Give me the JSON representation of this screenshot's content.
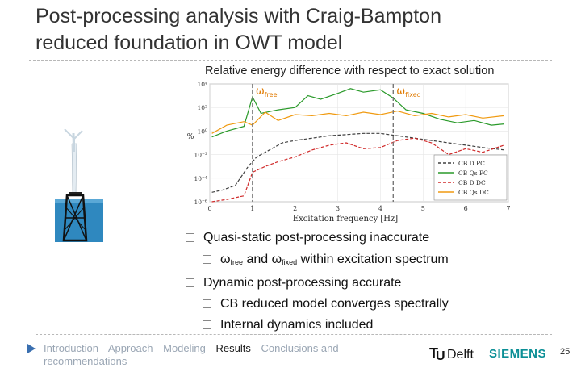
{
  "slide": {
    "title_line1": "Post-processing analysis with Craig-Bampton",
    "title_line2": "reduced foundation in OWT model",
    "chart_caption": "Relative energy difference with respect to exact solution",
    "page_number": "25"
  },
  "chart_data": {
    "type": "line",
    "xlabel": "Excitation frequency [Hz]",
    "ylabel": "%",
    "xlim": [
      0,
      7
    ],
    "ylim_log10": [
      -6,
      4
    ],
    "log_y": true,
    "x_ticks": [
      "0",
      "1",
      "2",
      "3",
      "4",
      "5",
      "6",
      "7"
    ],
    "y_ticks": [
      "10⁻⁶",
      "10⁻⁴",
      "10⁻²",
      "10⁰",
      "10²",
      "10⁴"
    ],
    "annotations": [
      {
        "symbol": "ω",
        "subscript": "free",
        "x": 1.0
      },
      {
        "symbol": "ω",
        "subscript": "fixed",
        "x": 4.3
      }
    ],
    "legend_position": "bottom-right",
    "series": [
      {
        "name": "CB D PC",
        "color": "#404040",
        "dash": "dashed",
        "points": [
          [
            0.05,
            -5.2
          ],
          [
            0.3,
            -5.0
          ],
          [
            0.6,
            -4.6
          ],
          [
            0.9,
            -3.0
          ],
          [
            1.1,
            -2.2
          ],
          [
            1.4,
            -1.6
          ],
          [
            1.7,
            -1.0
          ],
          [
            2.0,
            -0.8
          ],
          [
            2.4,
            -0.6
          ],
          [
            2.8,
            -0.4
          ],
          [
            3.2,
            -0.3
          ],
          [
            3.6,
            -0.2
          ],
          [
            4.0,
            -0.2
          ],
          [
            4.4,
            -0.4
          ],
          [
            4.8,
            -0.6
          ],
          [
            5.2,
            -0.8
          ],
          [
            5.6,
            -1.0
          ],
          [
            6.0,
            -1.2
          ],
          [
            6.4,
            -1.4
          ],
          [
            6.9,
            -1.6
          ]
        ]
      },
      {
        "name": "CB Qs PC",
        "color": "#2a9a2a",
        "dash": "solid",
        "points": [
          [
            0.05,
            -0.5
          ],
          [
            0.4,
            0.0
          ],
          [
            0.8,
            0.4
          ],
          [
            1.0,
            2.9
          ],
          [
            1.2,
            1.5
          ],
          [
            1.6,
            1.8
          ],
          [
            2.0,
            2.0
          ],
          [
            2.3,
            3.0
          ],
          [
            2.6,
            2.7
          ],
          [
            3.0,
            3.2
          ],
          [
            3.3,
            3.6
          ],
          [
            3.6,
            3.3
          ],
          [
            4.0,
            3.5
          ],
          [
            4.3,
            2.8
          ],
          [
            4.6,
            1.8
          ],
          [
            5.0,
            1.5
          ],
          [
            5.4,
            1.0
          ],
          [
            5.8,
            0.7
          ],
          [
            6.2,
            0.9
          ],
          [
            6.6,
            0.5
          ],
          [
            6.9,
            0.6
          ]
        ]
      },
      {
        "name": "CB D DC",
        "color": "#d02a2a",
        "dash": "dashed",
        "points": [
          [
            0.05,
            -6.0
          ],
          [
            0.4,
            -5.8
          ],
          [
            0.8,
            -5.5
          ],
          [
            1.0,
            -3.5
          ],
          [
            1.3,
            -3.0
          ],
          [
            1.6,
            -2.6
          ],
          [
            2.0,
            -2.2
          ],
          [
            2.4,
            -1.6
          ],
          [
            2.8,
            -1.2
          ],
          [
            3.2,
            -1.0
          ],
          [
            3.6,
            -1.5
          ],
          [
            4.0,
            -1.4
          ],
          [
            4.4,
            -0.8
          ],
          [
            4.8,
            -0.6
          ],
          [
            5.2,
            -1.0
          ],
          [
            5.6,
            -2.0
          ],
          [
            6.0,
            -1.5
          ],
          [
            6.4,
            -1.8
          ],
          [
            6.9,
            -1.2
          ]
        ]
      },
      {
        "name": "CB Qs DC",
        "color": "#f09a10",
        "dash": "solid",
        "points": [
          [
            0.05,
            -0.2
          ],
          [
            0.4,
            0.5
          ],
          [
            0.8,
            0.8
          ],
          [
            1.0,
            0.5
          ],
          [
            1.3,
            1.6
          ],
          [
            1.6,
            0.9
          ],
          [
            2.0,
            1.4
          ],
          [
            2.4,
            1.3
          ],
          [
            2.8,
            1.5
          ],
          [
            3.2,
            1.3
          ],
          [
            3.6,
            1.6
          ],
          [
            4.0,
            1.4
          ],
          [
            4.4,
            1.7
          ],
          [
            4.8,
            1.3
          ],
          [
            5.2,
            1.5
          ],
          [
            5.6,
            1.2
          ],
          [
            6.0,
            1.4
          ],
          [
            6.4,
            1.1
          ],
          [
            6.9,
            1.3
          ]
        ]
      }
    ]
  },
  "bullets": [
    {
      "level": 1,
      "text": "Quasi-static post-processing inaccurate"
    },
    {
      "level": 2,
      "w1": "ω",
      "sub1": "free",
      "mid": " and ",
      "w2": "ω",
      "sub2": "fixed",
      "rest": " within excitation spectrum"
    },
    {
      "level": 1,
      "text": "Dynamic post-processing  accurate"
    },
    {
      "level": 2,
      "text": "CB reduced model converges spectrally"
    },
    {
      "level": 2,
      "text": "Internal dynamics included"
    }
  ],
  "nav": {
    "items": [
      "Introduction",
      "Approach",
      "Modeling",
      "Results",
      "Conclusions and recommendations"
    ],
    "active": "Results"
  },
  "logos": {
    "tudelft": "TUDelft",
    "siemens": "SIEMENS"
  }
}
